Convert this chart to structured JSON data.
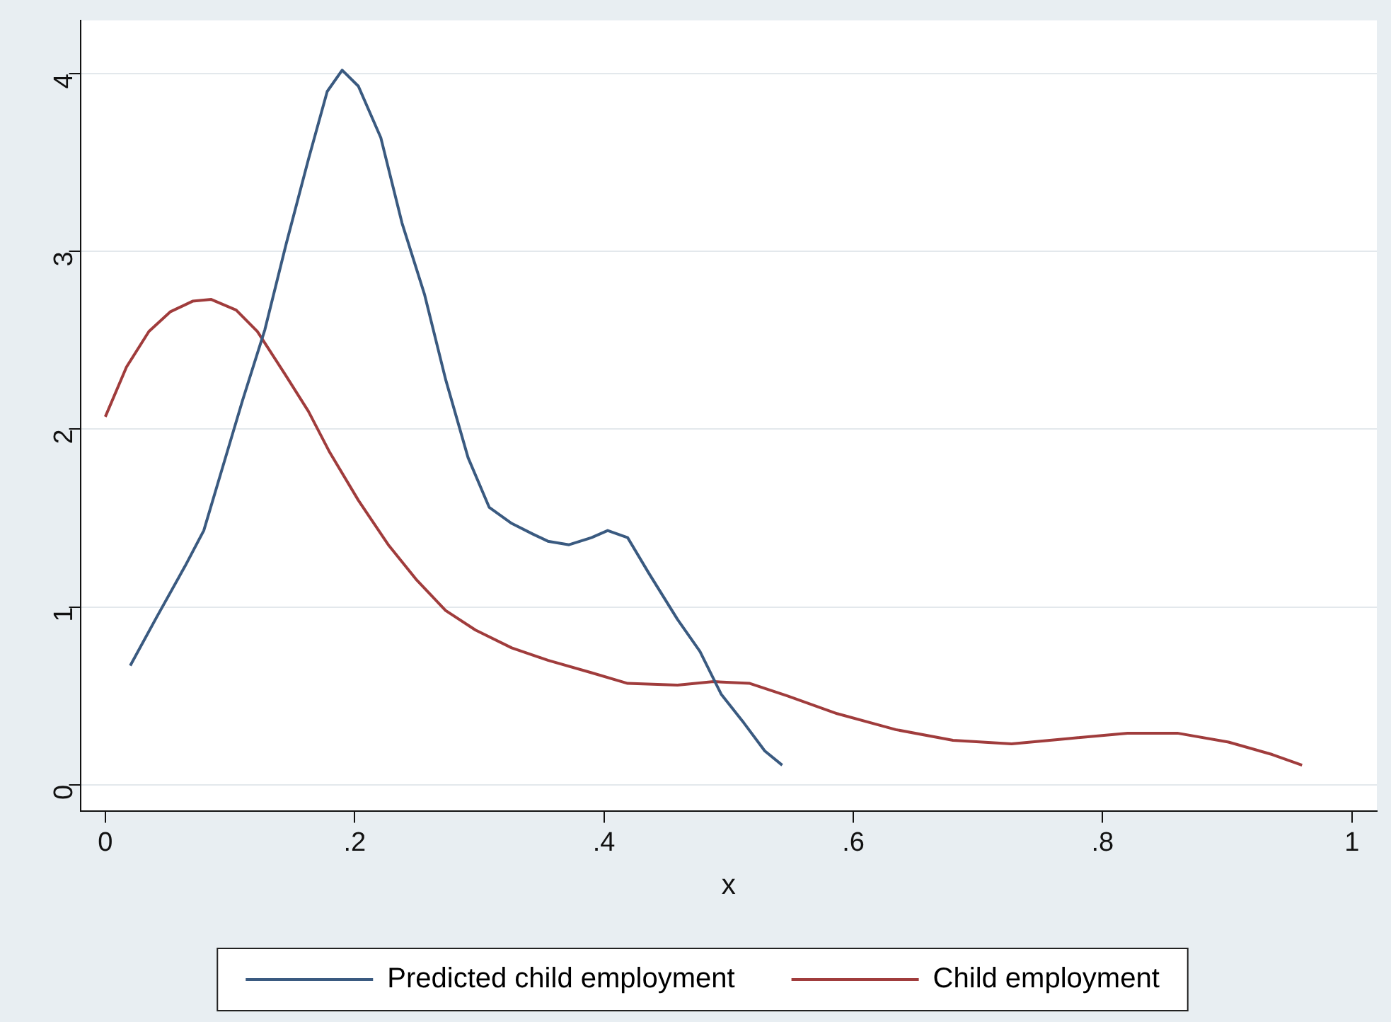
{
  "chart_data": {
    "type": "line",
    "xlabel": "x",
    "xlim": [
      -0.02,
      1.02
    ],
    "ylim": [
      -0.15,
      4.3
    ],
    "xticks": [
      0,
      {
        "value": 0.2,
        "label": ".2"
      },
      {
        "value": 0.4,
        "label": ".4"
      },
      {
        "value": 0.6,
        "label": ".6"
      },
      {
        "value": 0.8,
        "label": ".8"
      },
      1
    ],
    "yticks": [
      0,
      1,
      2,
      3,
      4
    ],
    "grid": "y",
    "legend": "bottom",
    "marker": "none",
    "line_style": "solid",
    "series": [
      {
        "name": "Predicted child employment",
        "color": "#3a5a80",
        "x": [
          0.02,
          0.041,
          0.064,
          0.079,
          0.093,
          0.11,
          0.128,
          0.145,
          0.163,
          0.178,
          0.19,
          0.203,
          0.221,
          0.238,
          0.256,
          0.273,
          0.291,
          0.308,
          0.326,
          0.343,
          0.355,
          0.372,
          0.39,
          0.403,
          0.419,
          0.436,
          0.459,
          0.477,
          0.494,
          0.512,
          0.529,
          0.543
        ],
        "values": [
          0.67,
          0.94,
          1.23,
          1.43,
          1.76,
          2.16,
          2.56,
          3.04,
          3.52,
          3.9,
          4.02,
          3.93,
          3.64,
          3.16,
          2.76,
          2.28,
          1.84,
          1.56,
          1.47,
          1.41,
          1.37,
          1.35,
          1.39,
          1.43,
          1.39,
          1.19,
          0.93,
          0.75,
          0.51,
          0.35,
          0.19,
          0.11
        ]
      },
      {
        "name": "Child employment",
        "color": "#a03c3c",
        "x": [
          0,
          0.017,
          0.035,
          0.052,
          0.07,
          0.085,
          0.105,
          0.122,
          0.145,
          0.163,
          0.18,
          0.203,
          0.227,
          0.25,
          0.273,
          0.297,
          0.326,
          0.355,
          0.39,
          0.419,
          0.459,
          0.488,
          0.517,
          0.547,
          0.587,
          0.634,
          0.68,
          0.727,
          0.773,
          0.82,
          0.86,
          0.901,
          0.936,
          0.96
        ],
        "values": [
          2.07,
          2.35,
          2.55,
          2.66,
          2.72,
          2.73,
          2.67,
          2.55,
          2.3,
          2.1,
          1.87,
          1.6,
          1.35,
          1.15,
          0.98,
          0.87,
          0.77,
          0.7,
          0.63,
          0.57,
          0.56,
          0.58,
          0.57,
          0.5,
          0.4,
          0.31,
          0.25,
          0.23,
          0.26,
          0.29,
          0.29,
          0.24,
          0.17,
          0.11
        ]
      }
    ]
  }
}
